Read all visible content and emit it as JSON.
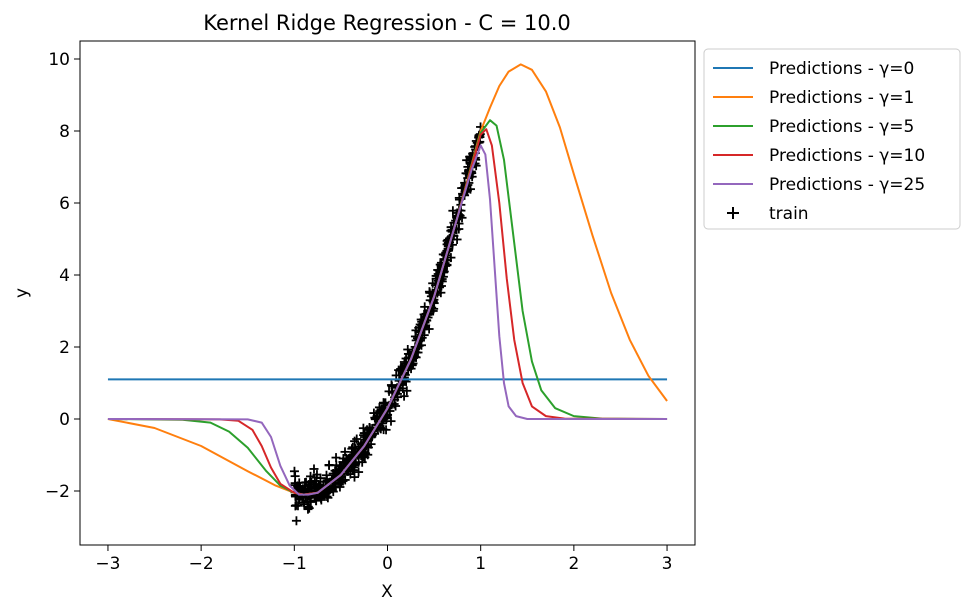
{
  "chart_data": {
    "type": "line",
    "title": "Kernel Ridge Regression - C = 10.0",
    "xlabel": "X",
    "ylabel": "y",
    "xlim": [
      -3.3,
      3.3
    ],
    "ylim": [
      -3.5,
      10.5
    ],
    "xticks": [
      -3,
      -2,
      -1,
      0,
      1,
      2,
      3
    ],
    "yticks": [
      -2,
      0,
      2,
      4,
      6,
      8,
      10
    ],
    "x_tick_labels": [
      "−3",
      "−2",
      "−1",
      "0",
      "1",
      "2",
      "3"
    ],
    "y_tick_labels": [
      "−2",
      "0",
      "2",
      "4",
      "6",
      "8",
      "10"
    ],
    "grid": false,
    "legend_position": "outside-top-right",
    "series": [
      {
        "name": "Predictions - γ=0",
        "color": "#1f77b4",
        "points": [
          [
            -3,
            1.1
          ],
          [
            3,
            1.1
          ]
        ]
      },
      {
        "name": "Predictions - γ=1",
        "color": "#ff7f0e",
        "points": [
          [
            -3,
            0.0
          ],
          [
            -2.5,
            -0.25
          ],
          [
            -2.0,
            -0.75
          ],
          [
            -1.5,
            -1.45
          ],
          [
            -1.2,
            -1.85
          ],
          [
            -1.0,
            -2.05
          ],
          [
            -0.9,
            -2.1
          ],
          [
            -0.75,
            -2.05
          ],
          [
            -0.5,
            -1.55
          ],
          [
            -0.25,
            -0.75
          ],
          [
            0,
            0.3
          ],
          [
            0.25,
            1.65
          ],
          [
            0.5,
            3.4
          ],
          [
            0.75,
            5.6
          ],
          [
            1.0,
            8.0
          ],
          [
            1.1,
            8.65
          ],
          [
            1.2,
            9.25
          ],
          [
            1.3,
            9.65
          ],
          [
            1.43,
            9.85
          ],
          [
            1.55,
            9.7
          ],
          [
            1.7,
            9.1
          ],
          [
            1.85,
            8.1
          ],
          [
            2.0,
            6.8
          ],
          [
            2.2,
            5.1
          ],
          [
            2.4,
            3.5
          ],
          [
            2.6,
            2.2
          ],
          [
            2.8,
            1.2
          ],
          [
            3.0,
            0.5
          ]
        ]
      },
      {
        "name": "Predictions - γ=5",
        "color": "#2ca02c",
        "points": [
          [
            -3,
            0.0
          ],
          [
            -2.2,
            -0.02
          ],
          [
            -1.9,
            -0.1
          ],
          [
            -1.7,
            -0.35
          ],
          [
            -1.5,
            -0.8
          ],
          [
            -1.3,
            -1.45
          ],
          [
            -1.15,
            -1.85
          ],
          [
            -1.0,
            -2.05
          ],
          [
            -0.9,
            -2.1
          ],
          [
            -0.75,
            -2.05
          ],
          [
            -0.5,
            -1.55
          ],
          [
            -0.25,
            -0.75
          ],
          [
            0,
            0.3
          ],
          [
            0.25,
            1.65
          ],
          [
            0.5,
            3.4
          ],
          [
            0.75,
            5.6
          ],
          [
            1.0,
            7.95
          ],
          [
            1.1,
            8.3
          ],
          [
            1.17,
            8.15
          ],
          [
            1.25,
            7.2
          ],
          [
            1.35,
            5.1
          ],
          [
            1.45,
            3.0
          ],
          [
            1.55,
            1.6
          ],
          [
            1.65,
            0.8
          ],
          [
            1.8,
            0.3
          ],
          [
            2.0,
            0.08
          ],
          [
            2.3,
            0.01
          ],
          [
            3.0,
            0.0
          ]
        ]
      },
      {
        "name": "Predictions - γ=10",
        "color": "#d62728",
        "points": [
          [
            -3,
            0.0
          ],
          [
            -1.8,
            -0.01
          ],
          [
            -1.6,
            -0.05
          ],
          [
            -1.45,
            -0.3
          ],
          [
            -1.35,
            -0.75
          ],
          [
            -1.25,
            -1.35
          ],
          [
            -1.15,
            -1.8
          ],
          [
            -1.0,
            -2.05
          ],
          [
            -0.9,
            -2.1
          ],
          [
            -0.75,
            -2.05
          ],
          [
            -0.5,
            -1.55
          ],
          [
            -0.25,
            -0.75
          ],
          [
            0,
            0.3
          ],
          [
            0.25,
            1.65
          ],
          [
            0.5,
            3.4
          ],
          [
            0.75,
            5.6
          ],
          [
            1.0,
            7.9
          ],
          [
            1.06,
            8.05
          ],
          [
            1.12,
            7.6
          ],
          [
            1.2,
            6.0
          ],
          [
            1.28,
            3.9
          ],
          [
            1.36,
            2.2
          ],
          [
            1.45,
            1.0
          ],
          [
            1.55,
            0.35
          ],
          [
            1.7,
            0.08
          ],
          [
            1.9,
            0.01
          ],
          [
            3.0,
            0.0
          ]
        ]
      },
      {
        "name": "Predictions - γ=25",
        "color": "#9467bd",
        "points": [
          [
            -3,
            0.0
          ],
          [
            -1.5,
            -0.01
          ],
          [
            -1.35,
            -0.1
          ],
          [
            -1.25,
            -0.5
          ],
          [
            -1.15,
            -1.3
          ],
          [
            -1.05,
            -1.85
          ],
          [
            -0.95,
            -2.1
          ],
          [
            -0.85,
            -2.1
          ],
          [
            -0.75,
            -2.05
          ],
          [
            -0.5,
            -1.55
          ],
          [
            -0.25,
            -0.75
          ],
          [
            0,
            0.3
          ],
          [
            0.25,
            1.65
          ],
          [
            0.5,
            3.4
          ],
          [
            0.75,
            5.6
          ],
          [
            0.9,
            6.9
          ],
          [
            1.0,
            7.6
          ],
          [
            1.05,
            7.35
          ],
          [
            1.1,
            6.1
          ],
          [
            1.15,
            4.2
          ],
          [
            1.2,
            2.3
          ],
          [
            1.25,
            1.0
          ],
          [
            1.3,
            0.35
          ],
          [
            1.38,
            0.08
          ],
          [
            1.5,
            0.0
          ],
          [
            3.0,
            0.0
          ]
        ]
      }
    ],
    "scatter": {
      "name": "train",
      "color": "#000000",
      "marker": "+",
      "x_range": [
        -1.0,
        1.0
      ],
      "curve_points": [
        [
          -1.0,
          -2.05
        ],
        [
          -0.9,
          -2.1
        ],
        [
          -0.75,
          -2.05
        ],
        [
          -0.5,
          -1.55
        ],
        [
          -0.25,
          -0.75
        ],
        [
          0,
          0.3
        ],
        [
          0.25,
          1.65
        ],
        [
          0.5,
          3.4
        ],
        [
          0.75,
          5.6
        ],
        [
          1.0,
          8.0
        ]
      ],
      "noise_std": 0.22,
      "count": 600
    }
  }
}
